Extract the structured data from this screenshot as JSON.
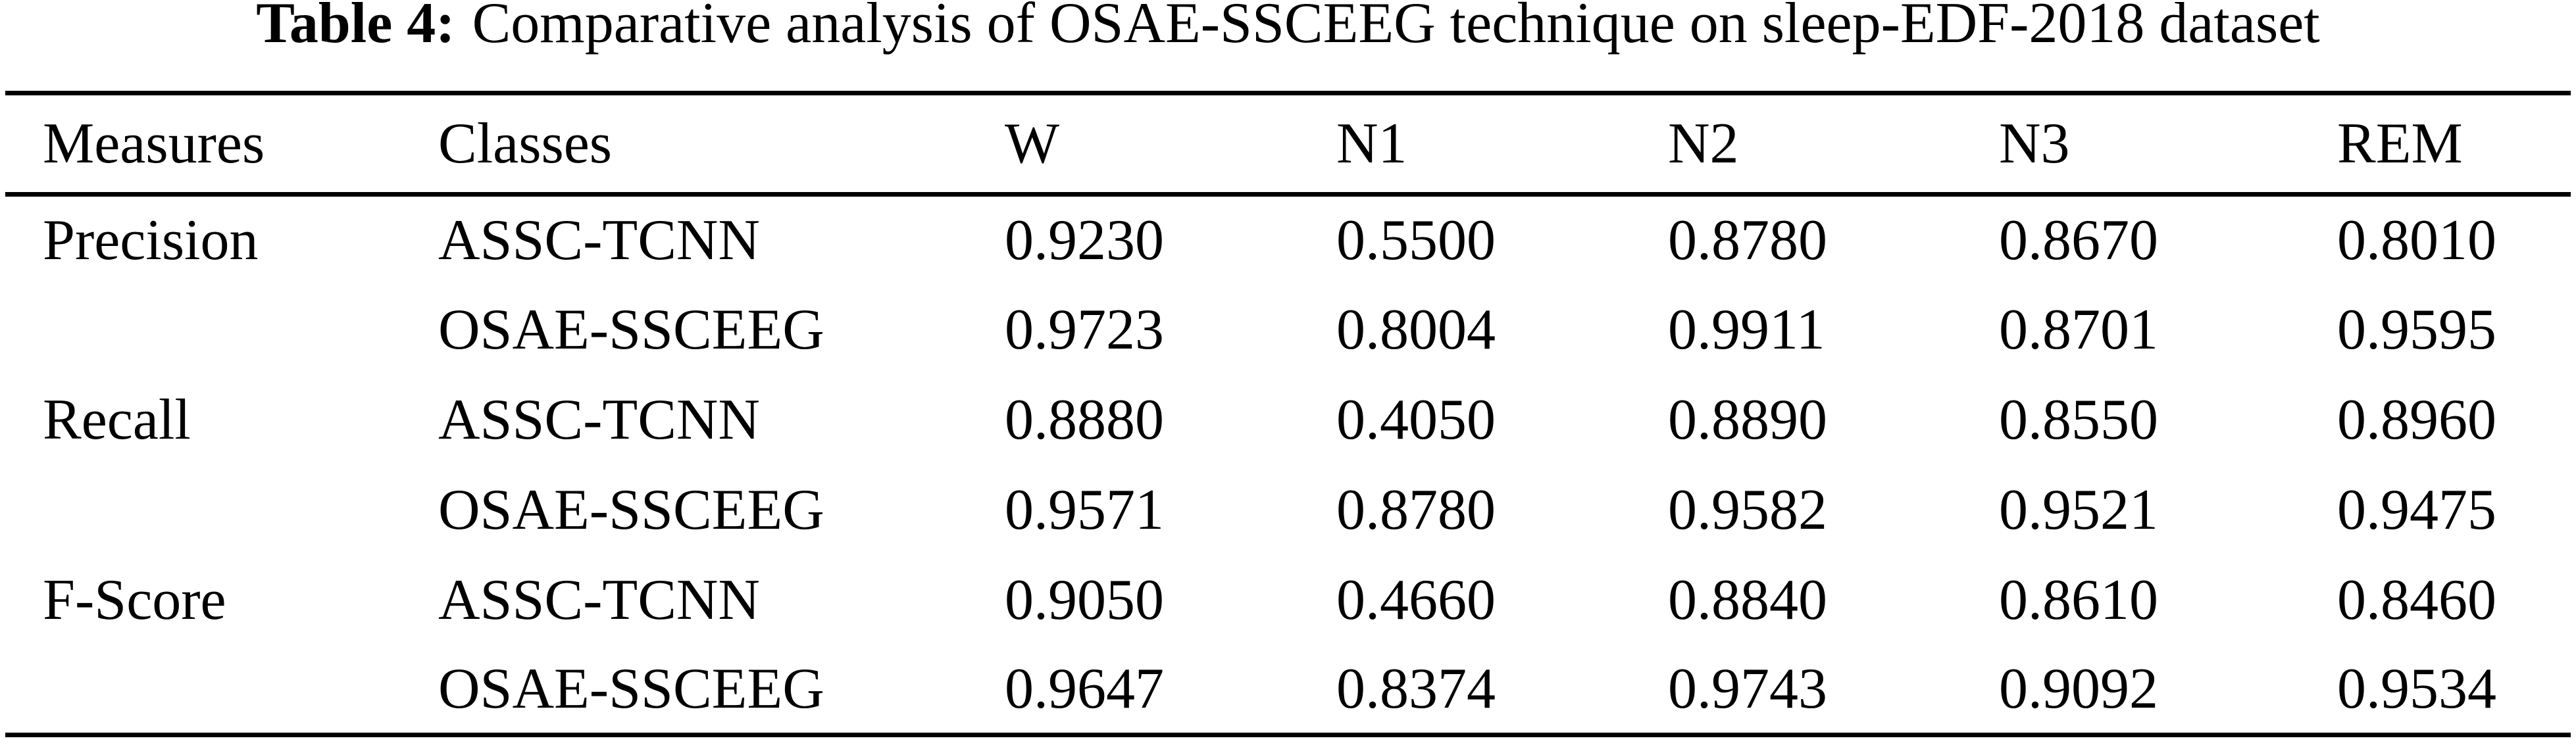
{
  "caption": {
    "label": "Table 4:",
    "text": "Comparative analysis of OSAE-SSCEEG technique on sleep-EDF-2018 dataset"
  },
  "table": {
    "columns": [
      "Measures",
      "Classes",
      "W",
      "N1",
      "N2",
      "N3",
      "REM"
    ],
    "rows": [
      {
        "measure": "Precision",
        "class": "ASSC-TCNN",
        "values": [
          "0.9230",
          "0.5500",
          "0.8780",
          "0.8670",
          "0.8010"
        ]
      },
      {
        "measure": "",
        "class": "OSAE-SSCEEG",
        "values": [
          "0.9723",
          "0.8004",
          "0.9911",
          "0.8701",
          "0.9595"
        ]
      },
      {
        "measure": "Recall",
        "class": "ASSC-TCNN",
        "values": [
          "0.8880",
          "0.4050",
          "0.8890",
          "0.8550",
          "0.8960"
        ]
      },
      {
        "measure": "",
        "class": "OSAE-SSCEEG",
        "values": [
          "0.9571",
          "0.8780",
          "0.9582",
          "0.9521",
          "0.9475"
        ]
      },
      {
        "measure": "F-Score",
        "class": "ASSC-TCNN",
        "values": [
          "0.9050",
          "0.4660",
          "0.8840",
          "0.8610",
          "0.8460"
        ]
      },
      {
        "measure": "",
        "class": "OSAE-SSCEEG",
        "values": [
          "0.9647",
          "0.8374",
          "0.9743",
          "0.9092",
          "0.9534"
        ]
      }
    ]
  },
  "colors": {
    "text": "#000000",
    "background": "#ffffff",
    "rule": "#000000"
  }
}
